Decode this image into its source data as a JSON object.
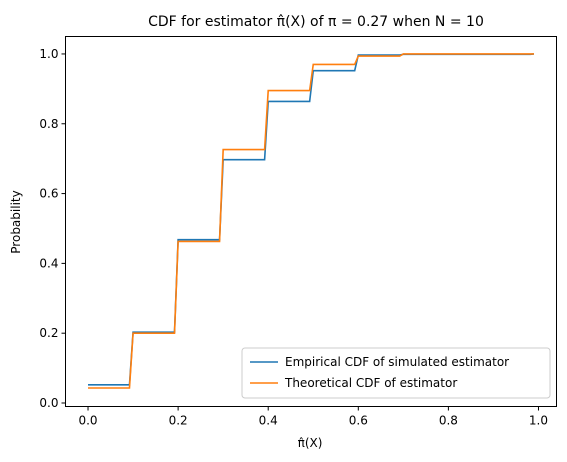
{
  "chart_data": {
    "type": "line",
    "title": "CDF for estimator π̂(X) of π = 0.27 when N = 10",
    "xlabel": "π̂(X)",
    "ylabel": "Probability",
    "xlim": [
      -0.05,
      1.04
    ],
    "ylim": [
      -0.01,
      1.05
    ],
    "xticks": [
      0.0,
      0.2,
      0.4,
      0.6,
      0.8,
      1.0
    ],
    "xtick_labels": [
      "0.0",
      "0.2",
      "0.4",
      "0.6",
      "0.8",
      "1.0"
    ],
    "yticks": [
      0.0,
      0.2,
      0.4,
      0.6,
      0.8,
      1.0
    ],
    "ytick_labels": [
      "0.0",
      "0.2",
      "0.4",
      "0.6",
      "0.8",
      "1.0"
    ],
    "grid": false,
    "legend_position": "lower-right",
    "series": [
      {
        "name": "Empirical CDF of simulated estimator",
        "color": "#1f77b4",
        "step": true,
        "x": [
          0.0,
          0.1,
          0.2,
          0.3,
          0.4,
          0.5,
          0.6,
          0.7,
          0.99
        ],
        "y": [
          0.052,
          0.203,
          0.468,
          0.697,
          0.864,
          0.952,
          0.997,
          0.999,
          1.0
        ]
      },
      {
        "name": "Theoretical CDF of estimator",
        "color": "#ff7f0e",
        "step": true,
        "x": [
          0.0,
          0.1,
          0.2,
          0.3,
          0.4,
          0.5,
          0.6,
          0.7,
          0.99
        ],
        "y": [
          0.043,
          0.2,
          0.463,
          0.726,
          0.895,
          0.97,
          0.994,
          1.0,
          1.0
        ]
      }
    ]
  }
}
